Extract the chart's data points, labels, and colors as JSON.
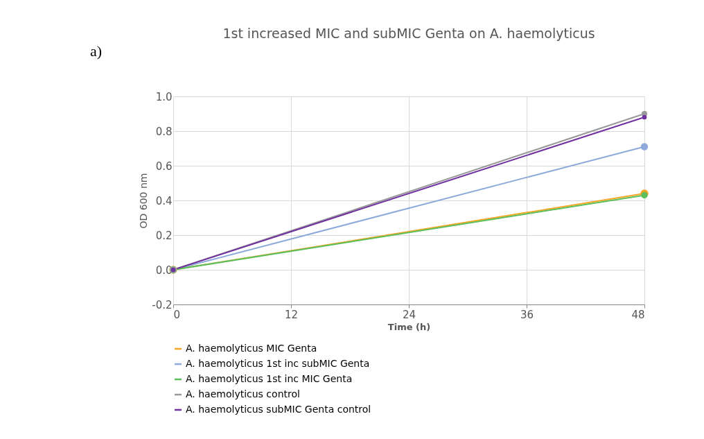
{
  "chart_data": {
    "type": "line",
    "title": "1st increased MIC and subMIC Genta on A. haemolyticus",
    "xlabel": "Time (h)",
    "ylabel": "OD 600 nm",
    "annotations": [
      "a)"
    ],
    "x": [
      0,
      48
    ],
    "xlim": [
      0,
      48
    ],
    "xticks": [
      0,
      12,
      24,
      36,
      48
    ],
    "ylim": [
      -0.2,
      1.0
    ],
    "yticks": [
      {
        "value": -0.2,
        "label": "-0.2"
      },
      {
        "value": 0,
        "label": "0.0"
      },
      {
        "value": 0.2,
        "label": "0.2"
      },
      {
        "value": 0.4,
        "label": "0.4"
      },
      {
        "value": 0.6,
        "label": "0.6"
      },
      {
        "value": 0.8,
        "label": "0.8"
      },
      {
        "value": 1,
        "label": "1.0"
      }
    ],
    "grid": true,
    "legend": "bottom",
    "marker": "circle",
    "line_style": "solid",
    "series": [
      {
        "name": "A. haemolyticus MIC Genta",
        "color": "#f5a623",
        "values": [
          0,
          0.44
        ]
      },
      {
        "name": "A. haemolyticus 1st inc subMIC Genta",
        "color": "#8eaadb",
        "values": [
          0,
          0.71
        ]
      },
      {
        "name": "A. haemolyticus 1st inc MIC Genta",
        "color": "#5cbf5c",
        "values": [
          0,
          0.43
        ]
      },
      {
        "name": "A. haemolyticus control",
        "color": "#999999",
        "values": [
          0,
          0.9
        ]
      },
      {
        "name": "A. haemolyticus subMIC Genta control",
        "color": "#7030a0",
        "values": [
          0,
          0.88
        ]
      }
    ]
  }
}
